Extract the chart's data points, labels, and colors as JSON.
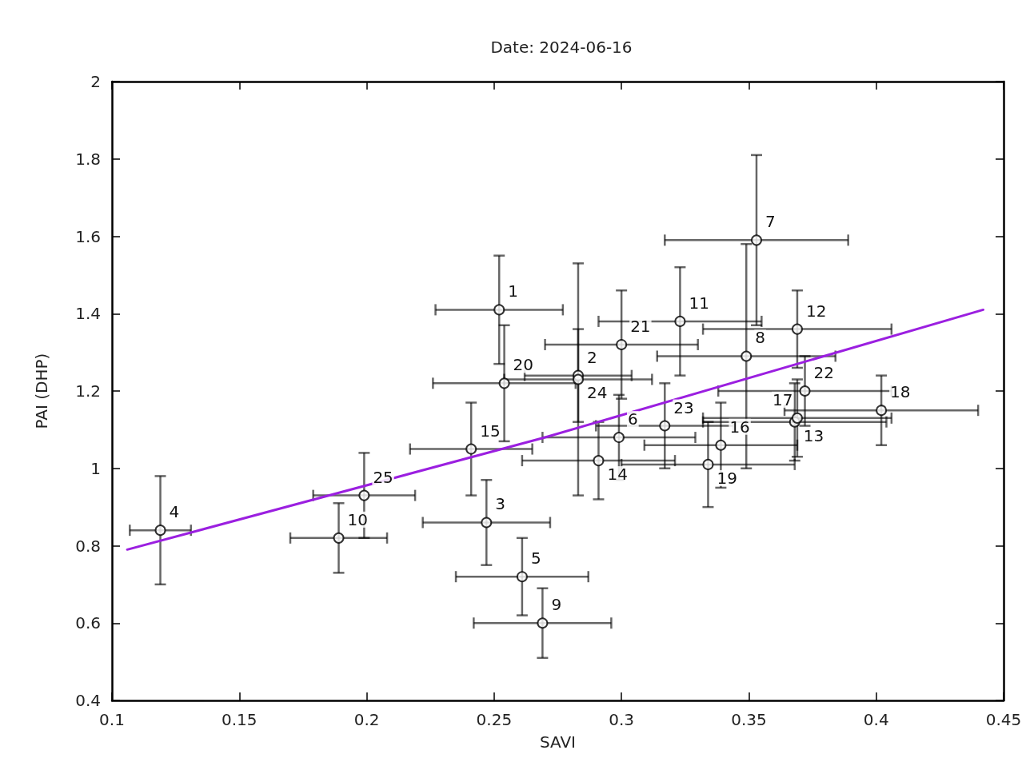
{
  "chart_data": {
    "type": "scatter",
    "title": "Date: 2024-06-16",
    "xlabel": "SAVI",
    "ylabel": "PAI (DHP)",
    "xlim": [
      0.1,
      0.45
    ],
    "xticks": [
      0.1,
      0.15,
      0.2,
      0.25,
      0.3,
      0.35,
      0.4,
      0.45
    ],
    "ylim": [
      0.4,
      2
    ],
    "yticks": [
      0.4,
      0.6,
      0.8,
      1,
      1.2,
      1.4,
      1.6,
      1.8,
      2
    ],
    "grid": false,
    "marker": "circle",
    "series": [
      {
        "color": "#000000",
        "x": [
          0.252,
          0.283,
          0.247,
          0.119,
          0.261,
          0.299,
          0.353,
          0.349,
          0.269,
          0.189,
          0.323,
          0.369,
          0.368,
          0.291,
          0.241,
          0.339,
          0.369,
          0.402,
          0.334,
          0.254,
          0.3,
          0.372,
          0.317,
          0.283,
          0.199
        ],
        "values": [
          1.41,
          1.24,
          0.86,
          0.84,
          0.72,
          1.08,
          1.59,
          1.29,
          0.6,
          0.82,
          1.38,
          1.36,
          1.12,
          1.02,
          1.05,
          1.06,
          1.13,
          1.15,
          1.01,
          1.22,
          1.32,
          1.2,
          1.11,
          1.23,
          0.93
        ],
        "xerrors": [
          0.025,
          0.021,
          0.025,
          0.012,
          0.026,
          0.03,
          0.036,
          0.035,
          0.027,
          0.019,
          0.032,
          0.037,
          0.036,
          0.03,
          0.024,
          0.03,
          0.037,
          0.038,
          0.034,
          0.028,
          0.03,
          0.034,
          0.027,
          0.029,
          0.02
        ],
        "errors": [
          0.14,
          0.12,
          0.11,
          0.14,
          0.1,
          0.11,
          0.22,
          0.29,
          0.09,
          0.09,
          0.14,
          0.1,
          0.1,
          0.1,
          0.12,
          0.11,
          0.1,
          0.09,
          0.11,
          0.15,
          0.14,
          0.09,
          0.11,
          0.3,
          0.11
        ]
      },
      {
        "type": "line",
        "color": "#9b1fe0",
        "line_style": "solid",
        "marker": "none",
        "x": [
          0.106,
          0.27,
          0.442
        ],
        "values": [
          0.79,
          1.08,
          1.41
        ]
      }
    ],
    "annotations": [
      {
        "text": "1",
        "x": 0.252,
        "y": 1.41
      },
      {
        "text": "2",
        "x": 0.283,
        "y": 1.24
      },
      {
        "text": "3",
        "x": 0.247,
        "y": 0.86
      },
      {
        "text": "4",
        "x": 0.119,
        "y": 0.84
      },
      {
        "text": "5",
        "x": 0.261,
        "y": 0.72
      },
      {
        "text": "6",
        "x": 0.299,
        "y": 1.08
      },
      {
        "text": "7",
        "x": 0.353,
        "y": 1.59
      },
      {
        "text": "8",
        "x": 0.349,
        "y": 1.29
      },
      {
        "text": "9",
        "x": 0.269,
        "y": 0.6
      },
      {
        "text": "10",
        "x": 0.189,
        "y": 0.82
      },
      {
        "text": "11",
        "x": 0.323,
        "y": 1.38
      },
      {
        "text": "12",
        "x": 0.369,
        "y": 1.36
      },
      {
        "text": "13",
        "x": 0.368,
        "y": 1.12
      },
      {
        "text": "14",
        "x": 0.291,
        "y": 1.02
      },
      {
        "text": "15",
        "x": 0.241,
        "y": 1.05
      },
      {
        "text": "16",
        "x": 0.339,
        "y": 1.06
      },
      {
        "text": "17",
        "x": 0.369,
        "y": 1.13
      },
      {
        "text": "18",
        "x": 0.402,
        "y": 1.15
      },
      {
        "text": "19",
        "x": 0.334,
        "y": 1.01
      },
      {
        "text": "20",
        "x": 0.254,
        "y": 1.22
      },
      {
        "text": "21",
        "x": 0.3,
        "y": 1.32
      },
      {
        "text": "22",
        "x": 0.372,
        "y": 1.2
      },
      {
        "text": "23",
        "x": 0.317,
        "y": 1.11
      },
      {
        "text": "24",
        "x": 0.283,
        "y": 1.23
      },
      {
        "text": "25",
        "x": 0.199,
        "y": 0.93
      }
    ]
  }
}
